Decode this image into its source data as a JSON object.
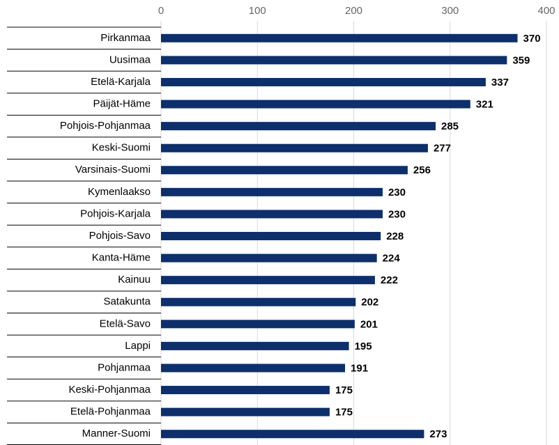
{
  "chart_data": {
    "type": "bar",
    "orientation": "horizontal",
    "categories": [
      "Pirkanmaa",
      "Uusimaa",
      "Etelä-Karjala",
      "Päijät-Häme",
      "Pohjois-Pohjanmaa",
      "Keski-Suomi",
      "Varsinais-Suomi",
      "Kymenlaakso",
      "Pohjois-Karjala",
      "Pohjois-Savo",
      "Kanta-Häme",
      "Kainuu",
      "Satakunta",
      "Etelä-Savo",
      "Lappi",
      "Pohjanmaa",
      "Keski-Pohjanmaa",
      "Etelä-Pohjanmaa",
      "Manner-Suomi"
    ],
    "values": [
      370,
      359,
      337,
      321,
      285,
      277,
      256,
      230,
      230,
      228,
      224,
      222,
      202,
      201,
      195,
      191,
      175,
      175,
      273
    ],
    "color": "#0d2f6b",
    "xlim": [
      0,
      400
    ],
    "xticks": [
      0,
      100,
      200,
      300,
      400
    ],
    "grid": true
  }
}
